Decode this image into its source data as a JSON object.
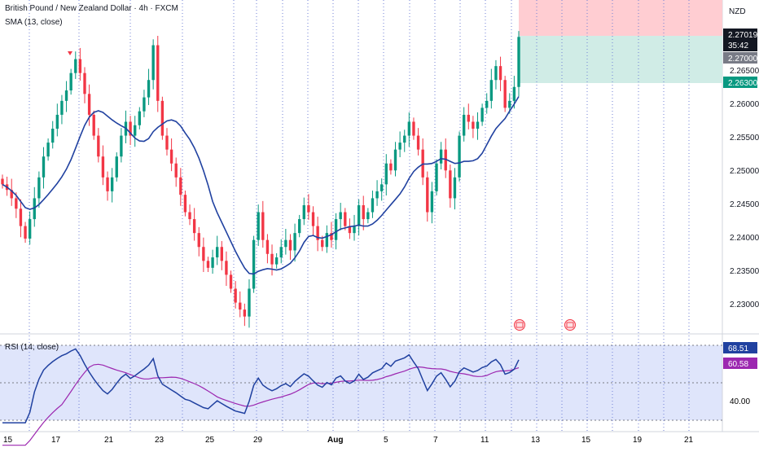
{
  "header": {
    "title": "British Pound / New Zealand Dollar · 4h · FXCM",
    "indicator": "SMA (13, close)",
    "currency": "NZD"
  },
  "colors": {
    "up": "#089981",
    "down": "#f23645",
    "sma": "#2041a0",
    "rsi": "#2041a0",
    "rsi_ma": "#9c27b0",
    "rsi_band": "#dfe5fb",
    "vline": "#6f7fd6",
    "loss_zone": "#ffcdd2",
    "profit_zone": "#d0ece6",
    "axis_text": "#131722"
  },
  "price_axis": {
    "ticks": [
      "2.26500",
      "2.26000",
      "2.25500",
      "2.25000",
      "2.24500",
      "2.24000",
      "2.23500",
      "2.23000"
    ],
    "badges": [
      {
        "label": "2.27019",
        "sub": "35:42",
        "kind": "last"
      },
      {
        "label": "2.27000",
        "kind": "entry"
      },
      {
        "label": "2.26300",
        "kind": "target"
      }
    ]
  },
  "rsi": {
    "title": "RSI (14, close)",
    "axis_ticks": [
      "40.00"
    ],
    "badges": [
      {
        "label": "68.51",
        "kind": "rsi"
      },
      {
        "label": "60.58",
        "kind": "rsi_ma"
      }
    ]
  },
  "time_axis": {
    "labels": [
      "15",
      "17",
      "21",
      "23",
      "25",
      "29",
      "Aug",
      "5",
      "7",
      "11",
      "13",
      "15",
      "19",
      "21"
    ]
  },
  "chart_data": {
    "type": "candlestick",
    "timeframe": "4h",
    "ylim": [
      2.2275,
      2.2755
    ],
    "sma_period": 13,
    "rsi_period": 14,
    "closes": [
      2.249,
      2.2482,
      2.247,
      2.2455,
      2.243,
      2.2412,
      2.244,
      2.247,
      2.25,
      2.253,
      2.255,
      2.257,
      2.259,
      2.261,
      2.2625,
      2.265,
      2.267,
      2.265,
      2.262,
      2.259,
      2.256,
      2.253,
      2.25,
      2.248,
      2.25,
      2.253,
      2.256,
      2.258,
      2.256,
      2.2575,
      2.2595,
      2.2615,
      2.264,
      2.269,
      2.261,
      2.256,
      2.254,
      2.252,
      2.25,
      2.2475,
      2.245,
      2.244,
      2.242,
      2.24,
      2.238,
      2.237,
      2.2385,
      2.24,
      2.238,
      2.236,
      2.234,
      2.232,
      2.231,
      2.23,
      2.234,
      2.241,
      2.245,
      2.241,
      2.239,
      2.2375,
      2.2385,
      2.24,
      2.241,
      2.2395,
      2.242,
      2.244,
      2.246,
      2.245,
      2.243,
      2.241,
      2.24,
      2.242,
      2.241,
      2.244,
      2.245,
      2.243,
      2.242,
      2.243,
      2.246,
      2.244,
      2.245,
      2.247,
      2.248,
      2.249,
      2.252,
      2.251,
      2.254,
      2.255,
      2.256,
      2.258,
      2.256,
      2.254,
      2.25,
      2.245,
      2.248,
      2.252,
      2.254,
      2.251,
      2.247,
      2.25,
      2.256,
      2.259,
      2.258,
      2.257,
      2.258,
      2.26,
      2.261,
      2.264,
      2.266,
      2.264,
      2.26,
      2.261,
      2.263,
      2.27019
    ]
  }
}
